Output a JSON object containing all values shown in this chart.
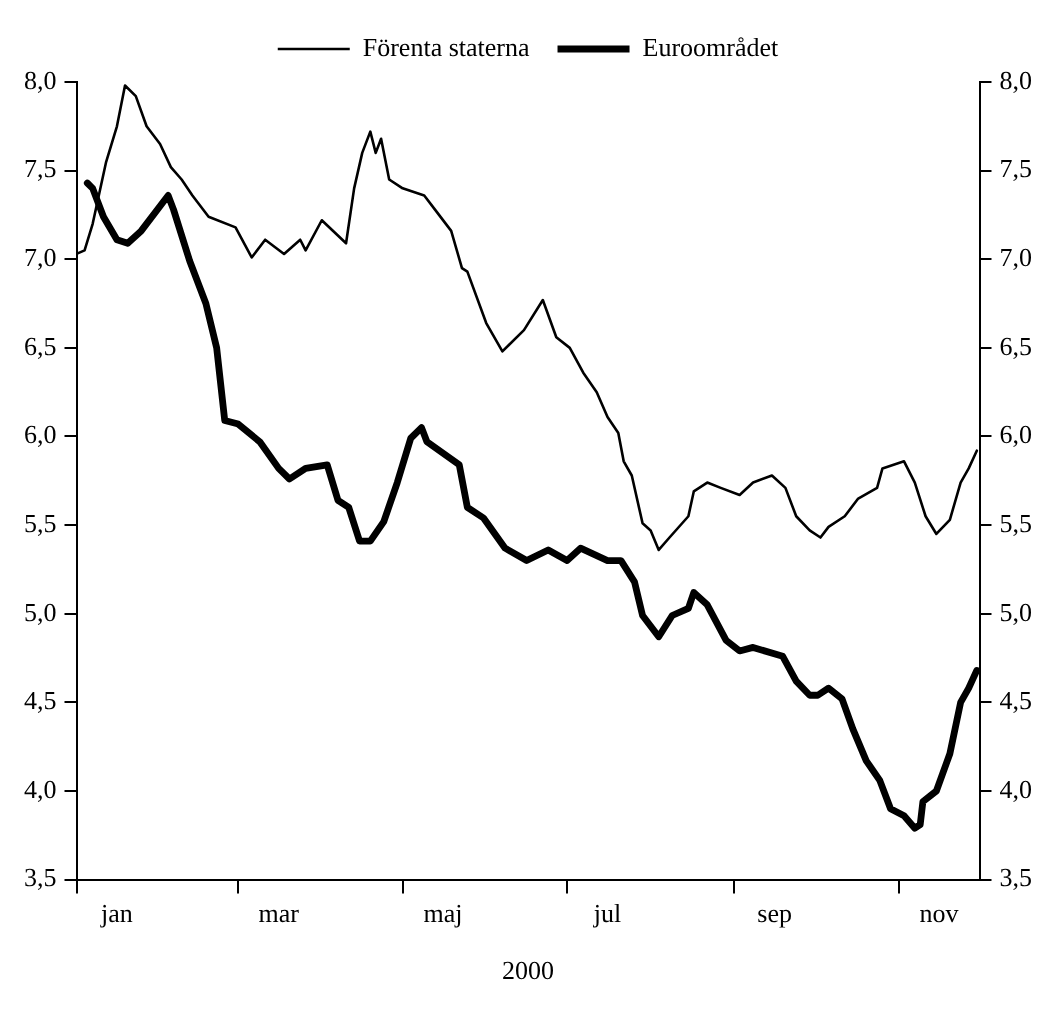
{
  "chart_data": {
    "type": "line",
    "xlabel": "2000",
    "legend": "top",
    "xlim": [
      "2000-01-01",
      "2000-12-01"
    ],
    "xticks": [
      {
        "value": "2000-01-01",
        "label": null
      },
      {
        "value": "2000-01-16",
        "label": "jan"
      },
      {
        "value": "2000-03-01",
        "label": null
      },
      {
        "value": "2000-03-16",
        "label": "mar"
      },
      {
        "value": "2000-05-01",
        "label": null
      },
      {
        "value": "2000-05-16",
        "label": "maj"
      },
      {
        "value": "2000-07-01",
        "label": null
      },
      {
        "value": "2000-07-16",
        "label": "jul"
      },
      {
        "value": "2000-09-01",
        "label": null
      },
      {
        "value": "2000-09-16",
        "label": "sep"
      },
      {
        "value": "2000-11-01",
        "label": null
      },
      {
        "value": "2000-11-16",
        "label": "nov"
      }
    ],
    "ylim": [
      3.5,
      8.0
    ],
    "yticks": [
      {
        "value": 3.5,
        "label": "3,5"
      },
      {
        "value": 4.0,
        "label": "4,0"
      },
      {
        "value": 4.5,
        "label": "4,5"
      },
      {
        "value": 5.0,
        "label": "5,0"
      },
      {
        "value": 5.5,
        "label": "5,5"
      },
      {
        "value": 6.0,
        "label": "6,0"
      },
      {
        "value": 6.5,
        "label": "6,5"
      },
      {
        "value": 7.0,
        "label": "7,0"
      },
      {
        "value": 7.5,
        "label": "7,5"
      },
      {
        "value": 8.0,
        "label": "8,0"
      }
    ],
    "y2lim": [
      3.5,
      8.0
    ],
    "y2ticks": [
      {
        "value": 3.5,
        "label": "3,5"
      },
      {
        "value": 4.0,
        "label": "4,0"
      },
      {
        "value": 4.5,
        "label": "4,5"
      },
      {
        "value": 5.0,
        "label": "5,0"
      },
      {
        "value": 5.5,
        "label": "5,5"
      },
      {
        "value": 6.0,
        "label": "6,0"
      },
      {
        "value": 6.5,
        "label": "6,5"
      },
      {
        "value": 7.0,
        "label": "7,0"
      },
      {
        "value": 7.5,
        "label": "7,5"
      },
      {
        "value": 8.0,
        "label": "8,0"
      }
    ],
    "grid": false,
    "marker": "none",
    "series": [
      {
        "name": "Förenta staterna",
        "color": "#000000",
        "x": [
          "2000-01-01",
          "2000-01-04",
          "2000-01-07",
          "2000-01-12",
          "2000-01-16",
          "2000-01-19",
          "2000-01-23",
          "2000-01-27",
          "2000-02-01",
          "2000-02-05",
          "2000-02-09",
          "2000-02-13",
          "2000-02-19",
          "2000-02-29",
          "2000-03-06",
          "2000-03-11",
          "2000-03-18",
          "2000-03-24",
          "2000-03-26",
          "2000-04-01",
          "2000-04-10",
          "2000-04-13",
          "2000-04-16",
          "2000-04-19",
          "2000-04-21",
          "2000-04-23",
          "2000-04-26",
          "2000-05-01",
          "2000-05-09",
          "2000-05-13",
          "2000-05-19",
          "2000-05-23",
          "2000-05-25",
          "2000-06-01",
          "2000-06-07",
          "2000-06-15",
          "2000-06-22",
          "2000-06-27",
          "2000-07-02",
          "2000-07-07",
          "2000-07-12",
          "2000-07-16",
          "2000-07-20",
          "2000-07-22",
          "2000-07-25",
          "2000-07-29",
          "2000-08-01",
          "2000-08-04",
          "2000-08-08",
          "2000-08-15",
          "2000-08-17",
          "2000-08-22",
          "2000-08-27",
          "2000-09-03",
          "2000-09-08",
          "2000-09-15",
          "2000-09-20",
          "2000-09-24",
          "2000-09-29",
          "2000-10-03",
          "2000-10-06",
          "2000-10-12",
          "2000-10-17",
          "2000-10-24",
          "2000-10-26",
          "2000-11-03",
          "2000-11-07",
          "2000-11-11",
          "2000-11-15",
          "2000-11-20",
          "2000-11-24",
          "2000-11-27",
          "2000-11-30"
        ],
        "values": [
          7.03,
          7.05,
          7.2,
          7.55,
          7.75,
          7.98,
          7.92,
          7.75,
          7.65,
          7.52,
          7.45,
          7.36,
          7.24,
          7.18,
          7.01,
          7.11,
          7.03,
          7.11,
          7.05,
          7.22,
          7.09,
          7.4,
          7.6,
          7.72,
          7.6,
          7.68,
          7.45,
          7.4,
          7.36,
          7.28,
          7.16,
          6.95,
          6.93,
          6.64,
          6.48,
          6.6,
          6.77,
          6.56,
          6.5,
          6.36,
          6.25,
          6.11,
          6.02,
          5.86,
          5.78,
          5.51,
          5.47,
          5.36,
          5.43,
          5.55,
          5.69,
          5.74,
          5.71,
          5.67,
          5.74,
          5.78,
          5.71,
          5.55,
          5.47,
          5.43,
          5.49,
          5.55,
          5.65,
          5.71,
          5.82,
          5.86,
          5.74,
          5.55,
          5.45,
          5.53,
          5.74,
          5.82,
          5.92
        ]
      },
      {
        "name": "Euroområdet",
        "color": "#000000",
        "x": [
          "2000-01-05",
          "2000-01-07",
          "2000-01-11",
          "2000-01-16",
          "2000-01-20",
          "2000-01-25",
          "2000-02-04",
          "2000-02-06",
          "2000-02-12",
          "2000-02-18",
          "2000-02-22",
          "2000-02-25",
          "2000-03-01",
          "2000-03-09",
          "2000-03-16",
          "2000-03-20",
          "2000-03-26",
          "2000-04-03",
          "2000-04-07",
          "2000-04-11",
          "2000-04-15",
          "2000-04-19",
          "2000-04-24",
          "2000-04-29",
          "2000-05-04",
          "2000-05-08",
          "2000-05-10",
          "2000-05-22",
          "2000-05-25",
          "2000-05-31",
          "2000-06-08",
          "2000-06-16",
          "2000-06-24",
          "2000-07-01",
          "2000-07-06",
          "2000-07-16",
          "2000-07-21",
          "2000-07-26",
          "2000-07-29",
          "2000-08-04",
          "2000-08-09",
          "2000-08-15",
          "2000-08-17",
          "2000-08-22",
          "2000-08-29",
          "2000-09-03",
          "2000-09-08",
          "2000-09-19",
          "2000-09-24",
          "2000-09-29",
          "2000-10-02",
          "2000-10-06",
          "2000-10-11",
          "2000-10-15",
          "2000-10-20",
          "2000-10-25",
          "2000-10-29",
          "2000-11-03",
          "2000-11-07",
          "2000-11-09",
          "2000-11-10",
          "2000-11-15",
          "2000-11-20",
          "2000-11-24",
          "2000-11-27",
          "2000-11-30"
        ],
        "values": [
          7.43,
          7.4,
          7.24,
          7.11,
          7.09,
          7.16,
          7.36,
          7.28,
          6.99,
          6.75,
          6.5,
          6.09,
          6.07,
          5.97,
          5.82,
          5.76,
          5.82,
          5.84,
          5.64,
          5.6,
          5.41,
          5.41,
          5.52,
          5.74,
          5.99,
          6.05,
          5.97,
          5.84,
          5.6,
          5.54,
          5.37,
          5.3,
          5.36,
          5.3,
          5.37,
          5.3,
          5.3,
          5.18,
          4.99,
          4.87,
          4.99,
          5.03,
          5.12,
          5.05,
          4.85,
          4.79,
          4.81,
          4.76,
          4.62,
          4.54,
          4.54,
          4.58,
          4.52,
          4.35,
          4.17,
          4.06,
          3.9,
          3.86,
          3.79,
          3.81,
          3.94,
          4.0,
          4.21,
          4.5,
          4.58,
          4.68
        ]
      }
    ]
  }
}
